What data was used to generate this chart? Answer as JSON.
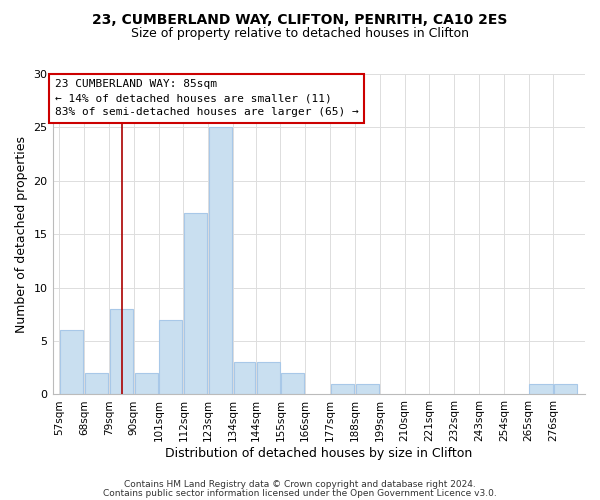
{
  "title_line1": "23, CUMBERLAND WAY, CLIFTON, PENRITH, CA10 2ES",
  "title_line2": "Size of property relative to detached houses in Clifton",
  "xlabel": "Distribution of detached houses by size in Clifton",
  "ylabel": "Number of detached properties",
  "bar_labels": [
    "57sqm",
    "68sqm",
    "79sqm",
    "90sqm",
    "101sqm",
    "112sqm",
    "123sqm",
    "134sqm",
    "144sqm",
    "155sqm",
    "166sqm",
    "177sqm",
    "188sqm",
    "199sqm",
    "210sqm",
    "221sqm",
    "232sqm",
    "243sqm",
    "254sqm",
    "265sqm",
    "276sqm"
  ],
  "bar_values": [
    6,
    2,
    8,
    2,
    7,
    17,
    25,
    3,
    3,
    2,
    0,
    1,
    1,
    0,
    0,
    0,
    0,
    0,
    0,
    1,
    1
  ],
  "bar_color": "#c9dff0",
  "bar_edge_color": "#a8c8e8",
  "property_line_x": 85,
  "bin_edges": [
    57,
    68,
    79,
    90,
    101,
    112,
    123,
    134,
    144,
    155,
    166,
    177,
    188,
    199,
    210,
    221,
    232,
    243,
    254,
    265,
    276,
    287
  ],
  "vline_color": "#aa0000",
  "annotation_title": "23 CUMBERLAND WAY: 85sqm",
  "annotation_line2": "← 14% of detached houses are smaller (11)",
  "annotation_line3": "83% of semi-detached houses are larger (65) →",
  "annotation_box_color": "white",
  "annotation_box_edge": "#cc0000",
  "ylim": [
    0,
    30
  ],
  "yticks": [
    0,
    5,
    10,
    15,
    20,
    25,
    30
  ],
  "footer_line1": "Contains HM Land Registry data © Crown copyright and database right 2024.",
  "footer_line2": "Contains public sector information licensed under the Open Government Licence v3.0.",
  "background_color": "#ffffff",
  "grid_color": "#dddddd"
}
